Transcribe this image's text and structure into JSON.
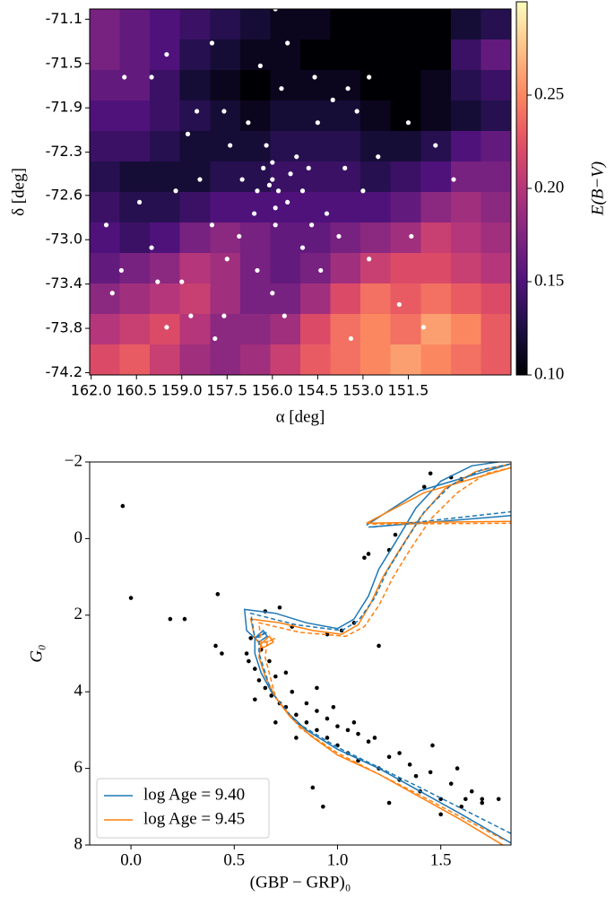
{
  "chart_data": [
    {
      "type": "heatmap",
      "xlabel": "α [deg]",
      "ylabel": "δ [deg]",
      "xlim": [
        162.05,
        148.1
      ],
      "ylim": [
        -74.22,
        -71.0
      ],
      "xticks": [
        {
          "value": 162,
          "label": "162.0"
        },
        160.5,
        {
          "value": 159,
          "label": "159.0"
        },
        157.5,
        {
          "value": 156,
          "label": "156.0"
        },
        154.5,
        {
          "value": 153,
          "label": "153.0"
        },
        151.5
      ],
      "yticks": [
        {
          "value": -74.2,
          "label": "-74.2"
        },
        {
          "value": -73.81,
          "label": "-73.8"
        },
        {
          "value": -73.42,
          "label": "-73.4"
        },
        {
          "value": -73.03,
          "label": "-73.0"
        },
        {
          "value": -72.64,
          "label": "-72.6"
        },
        {
          "value": -72.26,
          "label": "-72.3"
        },
        {
          "value": -71.87,
          "label": "-71.9"
        },
        {
          "value": -71.48,
          "label": "-71.5"
        },
        {
          "value": -71.09,
          "label": "-71.1"
        }
      ],
      "image": {
        "colormap": "magma",
        "values": [
          [
            0.17,
            0.16,
            0.15,
            0.14,
            0.13,
            0.12,
            0.11,
            0.11,
            0.1,
            0.1,
            0.1,
            0.1,
            0.12,
            0.13
          ],
          [
            0.17,
            0.16,
            0.15,
            0.13,
            0.12,
            0.11,
            0.11,
            0.1,
            0.1,
            0.1,
            0.1,
            0.1,
            0.14,
            0.16
          ],
          [
            0.16,
            0.16,
            0.14,
            0.12,
            0.11,
            0.1,
            0.11,
            0.11,
            0.11,
            0.1,
            0.1,
            0.11,
            0.13,
            0.14
          ],
          [
            0.15,
            0.15,
            0.14,
            0.13,
            0.12,
            0.11,
            0.12,
            0.12,
            0.12,
            0.11,
            0.1,
            0.11,
            0.12,
            0.13
          ],
          [
            0.14,
            0.14,
            0.13,
            0.12,
            0.12,
            0.12,
            0.13,
            0.13,
            0.13,
            0.12,
            0.12,
            0.13,
            0.15,
            0.16
          ],
          [
            0.13,
            0.12,
            0.12,
            0.12,
            0.13,
            0.13,
            0.14,
            0.14,
            0.14,
            0.13,
            0.14,
            0.15,
            0.17,
            0.17
          ],
          [
            0.14,
            0.13,
            0.13,
            0.14,
            0.15,
            0.15,
            0.15,
            0.15,
            0.15,
            0.15,
            0.16,
            0.18,
            0.19,
            0.18
          ],
          [
            0.15,
            0.14,
            0.15,
            0.17,
            0.18,
            0.17,
            0.16,
            0.16,
            0.17,
            0.18,
            0.19,
            0.21,
            0.2,
            0.19
          ],
          [
            0.16,
            0.17,
            0.18,
            0.2,
            0.19,
            0.17,
            0.16,
            0.17,
            0.19,
            0.21,
            0.22,
            0.22,
            0.21,
            0.2
          ],
          [
            0.18,
            0.19,
            0.2,
            0.21,
            0.19,
            0.17,
            0.17,
            0.19,
            0.22,
            0.24,
            0.23,
            0.24,
            0.23,
            0.22
          ],
          [
            0.2,
            0.21,
            0.22,
            0.2,
            0.18,
            0.18,
            0.19,
            0.22,
            0.24,
            0.25,
            0.24,
            0.26,
            0.25,
            0.23
          ],
          [
            0.22,
            0.23,
            0.21,
            0.19,
            0.18,
            0.19,
            0.21,
            0.23,
            0.24,
            0.25,
            0.26,
            0.25,
            0.24,
            0.23
          ]
        ]
      },
      "clim": [
        0.1,
        0.3
      ],
      "colorbar_label": "E(B−V)",
      "colorbar_ticks": [
        {
          "value": 0.1,
          "label": "0.10"
        },
        0.15,
        {
          "value": 0.2,
          "label": "0.20"
        },
        0.25
      ],
      "scatter": {
        "color": "#ffffff",
        "x": [
          156.0,
          155.8,
          156.3,
          155.5,
          156.6,
          155.2,
          157.0,
          154.8,
          156.2,
          155.9,
          157.4,
          154.5,
          154.0,
          153.5,
          153.2,
          155.5,
          155.9,
          158.0,
          159.5,
          160.0,
          158.5,
          158.8,
          159.2,
          158.0,
          157.5,
          159.0,
          159.8,
          160.0,
          161.0,
          161.3,
          158.7,
          157.6,
          156.5,
          156.0,
          155.0,
          154.4,
          153.8,
          153.0,
          152.5,
          152.8,
          151.5,
          150.6,
          150.0,
          151.4,
          151.8,
          151.0,
          153.4,
          155.6,
          154.2,
          155.0,
          154.7,
          156.8,
          157.6,
          155.7,
          156.4,
          157.1,
          158.4,
          153.6,
          152.8,
          160.4,
          161.5,
          160.9,
          157.9,
          159.5,
          154.6,
          156.0,
          155.4,
          156.5,
          155.9,
          156.1
        ],
        "y": [
          -72.5,
          -72.6,
          -72.4,
          -72.7,
          -72.8,
          -72.3,
          -72.5,
          -72.4,
          -72.2,
          -72.9,
          -72.2,
          -72.0,
          -71.8,
          -71.7,
          -71.9,
          -71.3,
          -71.0,
          -71.3,
          -71.4,
          -71.6,
          -71.9,
          -72.1,
          -72.6,
          -72.9,
          -73.2,
          -73.4,
          -73.4,
          -73.1,
          -73.3,
          -73.5,
          -73.7,
          -73.7,
          -73.3,
          -73.5,
          -73.1,
          -73.3,
          -73.0,
          -72.6,
          -72.3,
          -71.6,
          -72.0,
          -72.2,
          -72.5,
          -73.0,
          -73.6,
          -73.8,
          -73.9,
          -73.7,
          -72.8,
          -72.6,
          -72.9,
          -72.0,
          -71.9,
          -71.7,
          -71.5,
          -73.0,
          -72.5,
          -72.4,
          -73.2,
          -72.7,
          -72.9,
          -71.6,
          -73.9,
          -73.8,
          -71.6,
          -72.35,
          -72.45,
          -72.6,
          -72.75,
          -72.55
        ]
      }
    },
    {
      "type": "line",
      "xlabel": "(GBP − GRP)₀",
      "ylabel": "G₀",
      "xlim": [
        -0.2,
        1.84
      ],
      "ylim": [
        8,
        -2
      ],
      "xticks": [
        {
          "value": 0,
          "label": "0.0"
        },
        0.5,
        {
          "value": 1,
          "label": "1.0"
        },
        1.5
      ],
      "yticks": [
        {
          "value": -2,
          "label": "−2"
        },
        0,
        2,
        4,
        6,
        8
      ],
      "legend": "lower left",
      "points": {
        "color": "#000000",
        "x": [
          -0.04,
          0.0,
          0.42,
          0.19,
          0.26,
          0.41,
          0.44,
          0.56,
          0.57,
          0.6,
          0.62,
          0.65,
          0.68,
          0.72,
          0.75,
          0.8,
          0.85,
          0.9,
          0.95,
          1.0,
          1.05,
          1.1,
          1.2,
          1.3,
          1.4,
          1.5,
          1.6,
          1.7,
          1.65,
          1.55,
          1.45,
          1.35,
          1.25,
          1.15,
          1.05,
          0.95,
          0.85,
          0.78,
          0.7,
          0.9,
          1.0,
          1.1,
          0.8,
          0.88,
          0.93,
          1.25,
          1.46,
          1.7,
          1.78,
          1.58,
          1.2,
          0.78,
          0.72,
          0.65,
          0.95,
          1.02,
          1.08,
          1.15,
          1.13,
          1.25,
          1.28,
          1.45,
          1.55,
          1.42,
          1.6,
          0.58,
          0.63,
          0.67,
          0.75,
          0.9,
          0.98,
          1.08,
          1.18,
          1.3,
          0.7,
          0.6,
          1.38,
          1.62,
          1.5
        ],
        "y": [
          -0.85,
          1.55,
          1.45,
          2.1,
          2.1,
          2.8,
          3.0,
          3.0,
          3.2,
          3.4,
          3.7,
          3.9,
          4.1,
          4.3,
          4.4,
          4.6,
          4.8,
          5.0,
          5.2,
          5.4,
          5.6,
          5.8,
          6.0,
          6.3,
          6.6,
          6.8,
          7.0,
          6.8,
          6.6,
          6.4,
          6.1,
          5.9,
          5.7,
          5.3,
          5.0,
          4.7,
          4.3,
          4.0,
          3.6,
          4.5,
          4.9,
          5.1,
          5.2,
          6.5,
          7.0,
          6.9,
          5.4,
          6.9,
          6.8,
          6.0,
          2.8,
          2.3,
          1.8,
          1.9,
          2.5,
          2.4,
          2.2,
          0.4,
          0.5,
          0.3,
          -0.1,
          -1.7,
          -1.6,
          -1.35,
          -1.55,
          2.6,
          2.9,
          3.2,
          3.5,
          3.9,
          4.4,
          4.8,
          5.2,
          5.6,
          4.8,
          4.2,
          6.2,
          6.8,
          7.2
        ]
      },
      "series": [
        {
          "name": "log Age = 9.40",
          "color": "#1f77b4",
          "style": "solid",
          "x": [
            1.84,
            1.6,
            1.4,
            1.2,
            1.0,
            0.85,
            0.75,
            0.68,
            0.63,
            0.6,
            0.6,
            0.64,
            0.66,
            0.62,
            0.56,
            0.55,
            0.7,
            0.85,
            1.0,
            1.08,
            1.15,
            1.2,
            1.28,
            1.38,
            1.5,
            1.65,
            1.84,
            null,
            1.14,
            1.4,
            1.84,
            null,
            1.15,
            1.5,
            1.84
          ],
          "y": [
            7.95,
            7.2,
            6.6,
            6.0,
            5.5,
            5.0,
            4.5,
            4.0,
            3.5,
            3.0,
            2.6,
            2.4,
            2.55,
            2.7,
            2.4,
            1.85,
            1.95,
            2.2,
            2.35,
            2.1,
            1.5,
            0.8,
            0.1,
            -0.8,
            -1.5,
            -1.9,
            -2.05,
            null,
            -0.35,
            -1.25,
            -1.95,
            null,
            -0.3,
            -0.45,
            -0.6
          ]
        },
        {
          "name": "log Age = 9.45",
          "color": "#ff7f0e",
          "style": "solid",
          "x": [
            1.8,
            1.6,
            1.4,
            1.2,
            1.0,
            0.87,
            0.77,
            0.7,
            0.65,
            0.62,
            0.63,
            0.67,
            0.69,
            0.64,
            0.6,
            0.58,
            0.72,
            0.88,
            1.02,
            1.1,
            1.16,
            1.22,
            1.3,
            1.4,
            1.52,
            1.67,
            1.84,
            null,
            1.14,
            1.42,
            1.84,
            null,
            1.14,
            1.5,
            1.84
          ],
          "y": [
            8.0,
            7.35,
            6.75,
            6.15,
            5.65,
            5.15,
            4.65,
            4.15,
            3.6,
            3.1,
            2.75,
            2.55,
            2.7,
            2.85,
            2.6,
            2.1,
            2.2,
            2.4,
            2.5,
            2.25,
            1.7,
            1.0,
            0.3,
            -0.55,
            -1.3,
            -1.75,
            -1.95,
            null,
            -0.4,
            -1.2,
            -1.85,
            null,
            -0.4,
            -0.43,
            -0.45
          ]
        },
        {
          "color": "#1f77b4",
          "style": "dashed",
          "x": [
            1.84,
            1.4,
            1.0,
            0.8,
            0.68,
            0.62,
            0.62,
            0.66,
            0.6,
            0.58,
            0.8,
            1.02,
            1.1,
            1.18,
            1.24,
            1.32,
            1.42,
            1.55,
            1.7,
            1.84,
            null,
            1.17,
            1.84
          ],
          "y": [
            7.7,
            6.5,
            5.45,
            4.8,
            4.0,
            3.0,
            2.5,
            2.45,
            2.6,
            1.95,
            2.25,
            2.4,
            2.15,
            1.55,
            0.85,
            0.15,
            -0.7,
            -1.4,
            -1.8,
            -1.95,
            null,
            -0.3,
            -0.7
          ]
        },
        {
          "color": "#ff7f0e",
          "style": "dashed",
          "x": [
            1.8,
            1.4,
            1.0,
            0.82,
            0.7,
            0.65,
            0.66,
            0.7,
            0.63,
            0.62,
            0.82,
            1.04,
            1.13,
            1.2,
            1.27,
            1.35,
            1.45,
            1.58,
            1.72,
            1.84,
            null,
            1.17,
            1.84
          ],
          "y": [
            7.85,
            6.7,
            5.6,
            4.95,
            4.15,
            3.1,
            2.7,
            2.6,
            2.75,
            2.2,
            2.45,
            2.55,
            2.3,
            1.75,
            1.0,
            0.3,
            -0.5,
            -1.2,
            -1.7,
            -1.85,
            null,
            -0.38,
            -0.4
          ]
        }
      ]
    }
  ]
}
